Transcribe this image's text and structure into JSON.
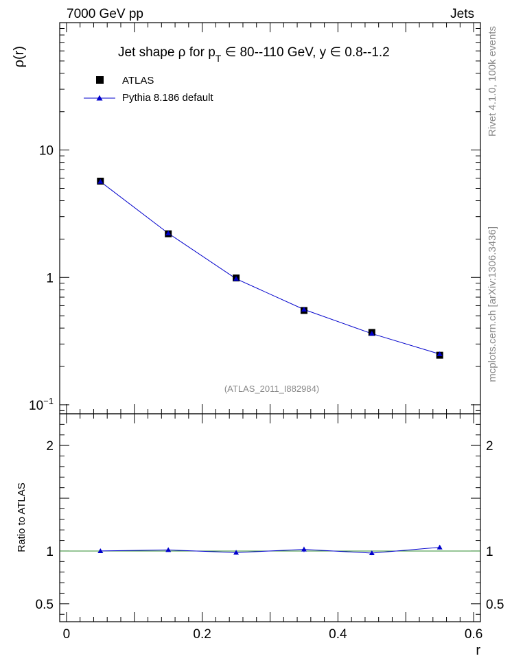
{
  "header": {
    "left": "7000 GeV pp",
    "right": "Jets"
  },
  "side_text": {
    "upper": "Rivet 4.1.0,  100k events",
    "lower": "mcplots.cern.ch [arXiv:1306.3436]"
  },
  "chart_data": [
    {
      "panel": "main",
      "type": "line",
      "title_parts": {
        "prefix": "Jet shape  ρ for p",
        "sub": "T",
        "middle": " ∈ 80--110 GeV, y  ∈ 0.8--1.2"
      },
      "ylabel": "ρ(r)",
      "xlabel": "r",
      "xlim": [
        -0.01,
        0.61
      ],
      "ylim": [
        0.085,
        100
      ],
      "yscale": "log",
      "y_ticks": [
        {
          "value": 10,
          "label": "10"
        },
        {
          "value": 1,
          "label": "1"
        },
        {
          "value": 0.1,
          "label": "10",
          "sup": "−1"
        }
      ],
      "watermark": "(ATLAS_2011_I882984)",
      "legend": [
        "ATLAS",
        "Pythia 8.186 default"
      ],
      "series": [
        {
          "name": "ATLAS",
          "marker": "square",
          "color": "#000000",
          "x": [
            0.05,
            0.15,
            0.25,
            0.35,
            0.45,
            0.55
          ],
          "values": [
            5.7,
            2.2,
            0.99,
            0.55,
            0.37,
            0.245
          ]
        },
        {
          "name": "Pythia 8.186 default",
          "marker": "triangle",
          "color": "#0000cc",
          "x": [
            0.05,
            0.15,
            0.25,
            0.35,
            0.45,
            0.55
          ],
          "values": [
            5.65,
            2.22,
            0.975,
            0.56,
            0.362,
            0.25
          ]
        }
      ]
    },
    {
      "panel": "ratio",
      "type": "line",
      "ylabel": "Ratio to ATLAS",
      "xlabel": "r",
      "xlim": [
        -0.01,
        0.61
      ],
      "ylim": [
        0.33,
        2.3
      ],
      "y_ticks": [
        {
          "value": 2,
          "label": "2"
        },
        {
          "value": 1,
          "label": "1"
        },
        {
          "value": 0.5,
          "label": "0.5"
        }
      ],
      "x_ticks": [
        {
          "value": 0,
          "label": "0"
        },
        {
          "value": 0.2,
          "label": "0.2"
        },
        {
          "value": 0.4,
          "label": "0.4"
        },
        {
          "value": 0.6,
          "label": "0.6"
        }
      ],
      "series": [
        {
          "name": "Pythia 8.186 default",
          "color": "#0000cc",
          "x": [
            0.05,
            0.15,
            0.25,
            0.35,
            0.45,
            0.55
          ],
          "values": [
            1.0,
            1.01,
            0.985,
            1.015,
            0.98,
            1.035
          ],
          "errors": [
            0.012,
            0.012,
            0.02,
            0.025,
            0.02,
            0.02
          ]
        }
      ]
    }
  ]
}
